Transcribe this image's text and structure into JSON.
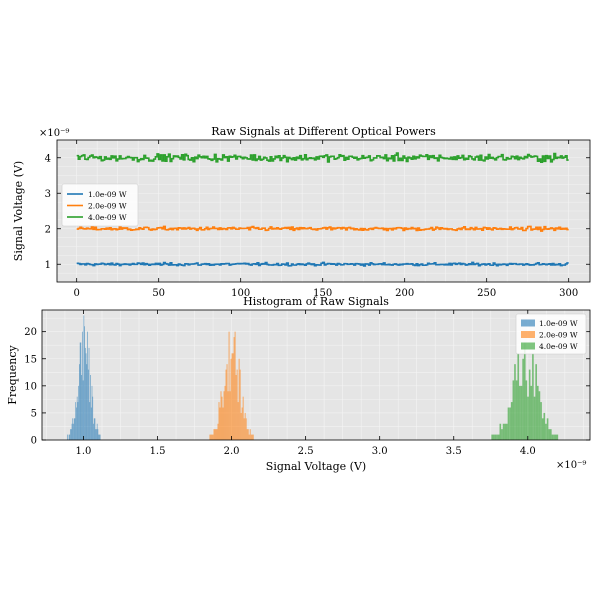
{
  "chart_data": [
    {
      "type": "line",
      "title": "Raw Signals at Different Optical Powers",
      "xlabel": "",
      "ylabel": "Signal Voltage (V)",
      "y_scale_label": "×10⁻⁹",
      "xlim": [
        -12,
        313
      ],
      "ylim": [
        0.5,
        4.5
      ],
      "x_ticks": [
        "0",
        "50",
        "100",
        "150",
        "200",
        "250",
        "300"
      ],
      "y_ticks": [
        "1",
        "2",
        "3",
        "4"
      ],
      "grid": true,
      "legend_position": "left",
      "series": [
        {
          "name": "1.0e-09 W",
          "color": "#1f77b4",
          "mean": 1.0,
          "std": 0.03,
          "n": 300
        },
        {
          "name": "2.0e-09 W",
          "color": "#ff7f0e",
          "mean": 2.0,
          "std": 0.04,
          "n": 300
        },
        {
          "name": "4.0e-09 W",
          "color": "#2ca02c",
          "mean": 4.0,
          "std": 0.08,
          "n": 300
        }
      ]
    },
    {
      "type": "bar",
      "title": "Histogram of Raw Signals",
      "xlabel": "Signal Voltage (V)",
      "ylabel": "Frequency",
      "x_scale_label": "×10⁻⁹",
      "xlim": [
        0.72,
        4.42
      ],
      "ylim": [
        0,
        24
      ],
      "x_ticks": [
        "1.0",
        "1.5",
        "2.0",
        "2.5",
        "3.0",
        "3.5",
        "4.0"
      ],
      "y_ticks": [
        "0",
        "5",
        "10",
        "15",
        "20"
      ],
      "grid": true,
      "legend_position": "top-right",
      "series": [
        {
          "name": "1.0e-09 W",
          "color": "#1f77b4",
          "range": [
            0.88,
            1.13
          ],
          "peak": 23
        },
        {
          "name": "2.0e-09 W",
          "color": "#ff7f0e",
          "range": [
            1.83,
            2.17
          ],
          "peak": 21
        },
        {
          "name": "4.0e-09 W",
          "color": "#2ca02c",
          "range": [
            3.71,
            4.26
          ],
          "peak": 18
        }
      ]
    }
  ]
}
